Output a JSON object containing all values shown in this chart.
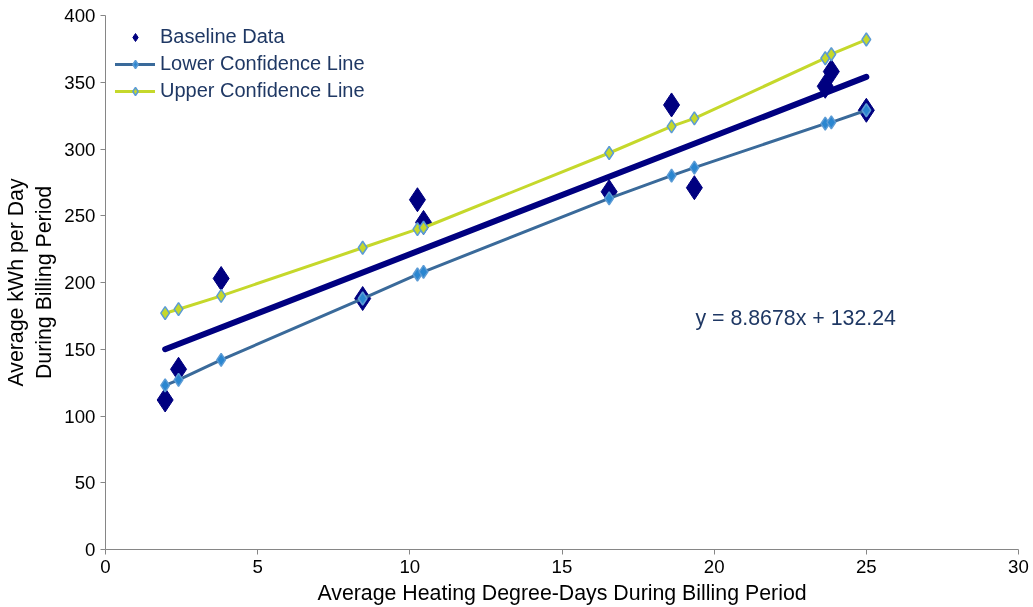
{
  "chart_data": {
    "type": "scatter",
    "xlabel": "Average Heating Degree-Days During Billing Period",
    "ylabel": "Average kWh per Day\nDuring Billing Period",
    "xlim": [
      0,
      30
    ],
    "ylim": [
      0,
      400
    ],
    "xticks": [
      0,
      5,
      10,
      15,
      20,
      25,
      30
    ],
    "yticks": [
      0,
      50,
      100,
      150,
      200,
      250,
      300,
      350,
      400
    ],
    "grid": false,
    "legend": "top left",
    "annotations": [
      "y = 8.8678x + 132.24"
    ],
    "series": [
      {
        "name": "Baseline Data",
        "marker": "diamond",
        "color": "#000080",
        "x": [
          1.96,
          2.4,
          3.8,
          8.45,
          10.25,
          10.45,
          16.55,
          18.6,
          19.35,
          23.65,
          23.85,
          25.0
        ],
        "values": [
          112,
          135,
          203,
          188,
          262,
          245,
          268,
          333,
          271,
          347,
          358,
          329
        ]
      },
      {
        "name": "Lower Confidence Line",
        "type": "line",
        "marker": "diamond",
        "color": "#3a6a9a",
        "x": [
          1.96,
          2.4,
          3.8,
          8.45,
          10.25,
          10.45,
          16.55,
          18.6,
          19.35,
          23.65,
          23.85,
          25.0
        ],
        "values": [
          123,
          127,
          142,
          188,
          206,
          208,
          263,
          280,
          286,
          319,
          320,
          329
        ]
      },
      {
        "name": "Upper Confidence Line",
        "type": "line",
        "marker": "diamond",
        "color": "#c5d82b",
        "x": [
          1.96,
          2.4,
          3.8,
          8.45,
          10.25,
          10.45,
          16.55,
          18.6,
          19.35,
          23.65,
          23.85,
          25.0
        ],
        "values": [
          177,
          180,
          190,
          226,
          240,
          241,
          297,
          317,
          323,
          368,
          371,
          382
        ]
      },
      {
        "type": "line",
        "marker": "none",
        "color": "#000080",
        "x": [
          1.96,
          25.0
        ],
        "values": [
          150,
          354
        ]
      }
    ]
  }
}
